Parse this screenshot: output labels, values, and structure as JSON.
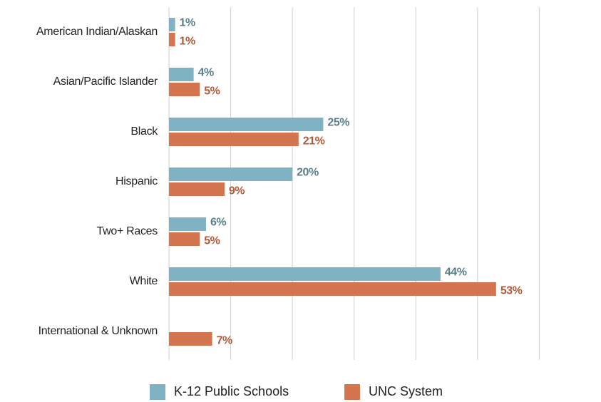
{
  "chart_data": {
    "type": "bar",
    "orientation": "horizontal",
    "categories": [
      "American Indian/Alaskan",
      "Asian/Pacific Islander",
      "Black",
      "Hispanic",
      "Two+ Races",
      "White",
      "International & Unknown"
    ],
    "series": [
      {
        "name": "K-12 Public Schools",
        "color": "#7fb2c3",
        "values": [
          1,
          4,
          25,
          20,
          6,
          44,
          null
        ],
        "value_labels": [
          "1%",
          "4%",
          "25%",
          "20%",
          "6%",
          "44%",
          null
        ]
      },
      {
        "name": "UNC System",
        "color": "#d4754f",
        "values": [
          1,
          5,
          21,
          9,
          5,
          53,
          7
        ],
        "value_labels": [
          "1%",
          "5%",
          "21%",
          "9%",
          "5%",
          "53%",
          "7%"
        ]
      }
    ],
    "xlim": [
      0,
      70
    ],
    "xticks": [
      0,
      10,
      20,
      30,
      40,
      50,
      60
    ],
    "grid": true,
    "legend": "bottom"
  }
}
